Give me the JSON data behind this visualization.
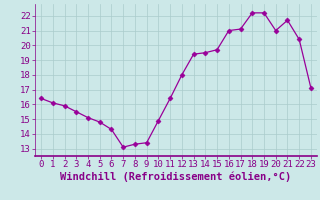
{
  "x": [
    0,
    1,
    2,
    3,
    4,
    5,
    6,
    7,
    8,
    9,
    10,
    11,
    12,
    13,
    14,
    15,
    16,
    17,
    18,
    19,
    20,
    21,
    22,
    23
  ],
  "y": [
    16.4,
    16.1,
    15.9,
    15.5,
    15.1,
    14.8,
    14.3,
    13.1,
    13.3,
    13.4,
    14.9,
    16.4,
    18.0,
    19.4,
    19.5,
    19.7,
    21.0,
    21.1,
    22.2,
    22.2,
    21.0,
    21.7,
    20.4,
    17.1
  ],
  "line_color": "#990099",
  "marker": "D",
  "marker_size": 2.5,
  "bg_color": "#cce8e8",
  "grid_color": "#aacccc",
  "xlabel": "Windchill (Refroidissement éolien,°C)",
  "xlabel_fontsize": 7.5,
  "ylim": [
    12.5,
    22.8
  ],
  "xlim": [
    -0.5,
    23.5
  ],
  "yticks": [
    13,
    14,
    15,
    16,
    17,
    18,
    19,
    20,
    21,
    22
  ],
  "xtick_labels": [
    "0",
    "1",
    "2",
    "3",
    "4",
    "5",
    "6",
    "7",
    "8",
    "9",
    "10",
    "11",
    "12",
    "13",
    "14",
    "15",
    "16",
    "17",
    "18",
    "19",
    "20",
    "21",
    "22",
    "23"
  ],
  "tick_fontsize": 6.5,
  "tick_color": "#880088",
  "axis_color": "#880088",
  "spine_color": "#880088"
}
